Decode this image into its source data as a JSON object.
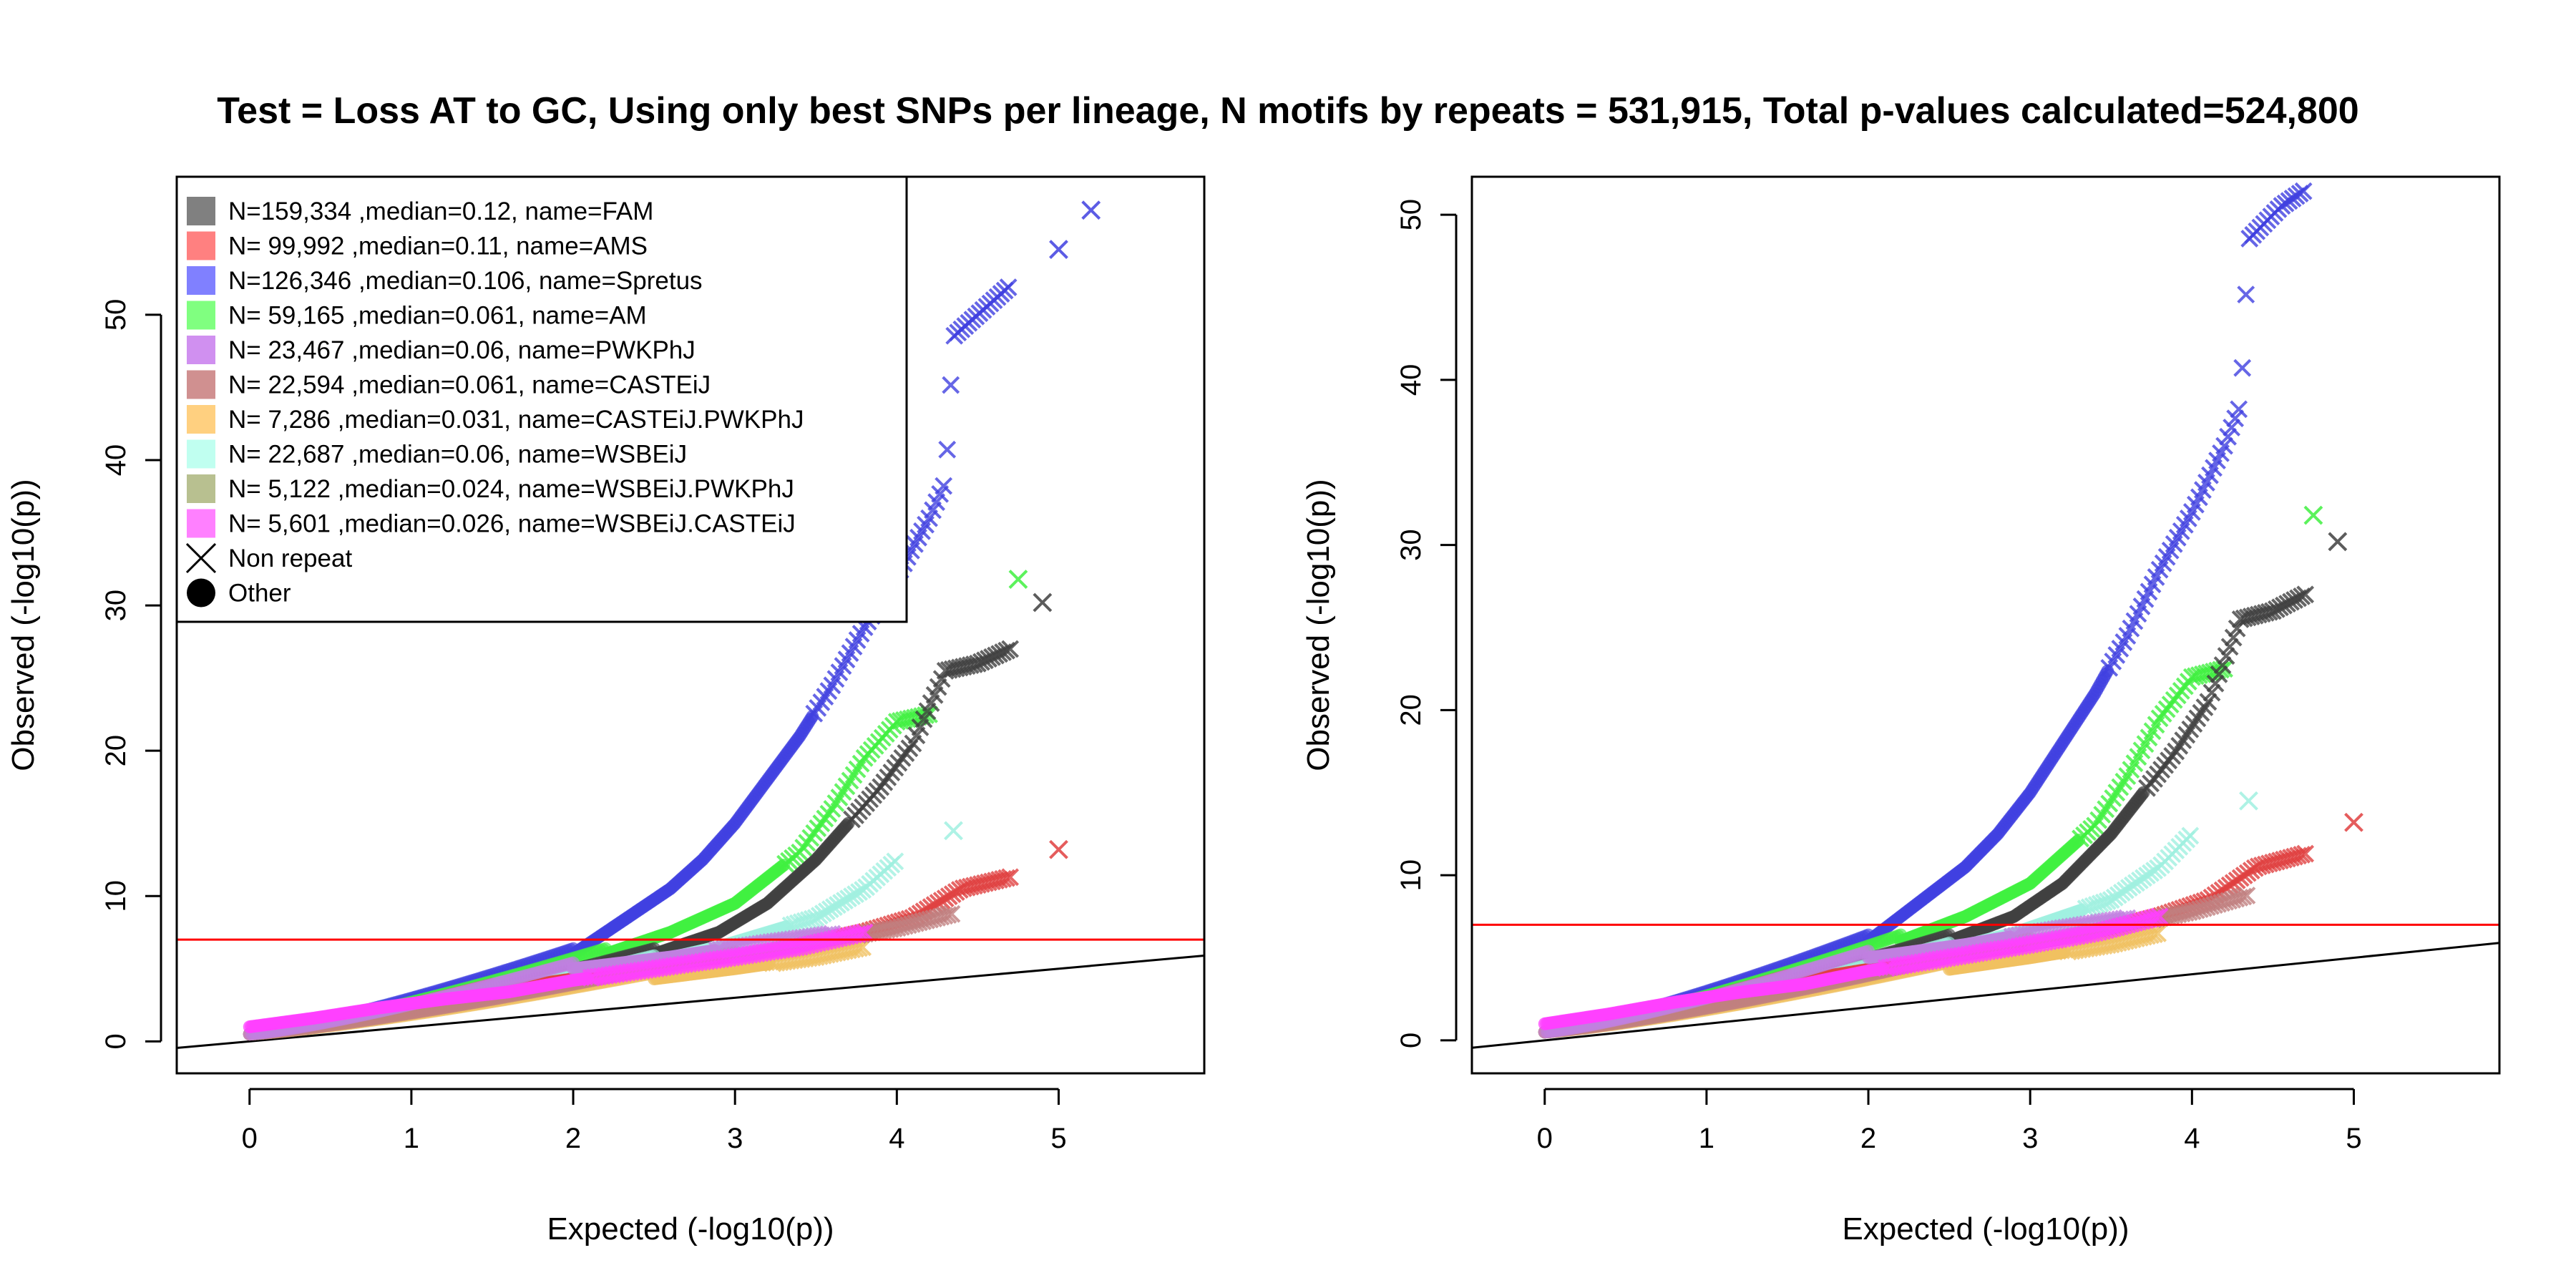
{
  "title": "Test = Loss AT to GC, Using only best SNPs per lineage, N motifs by repeats = 531,915, Total p-values calculated=524,800",
  "chart_data": [
    {
      "type": "scatter",
      "xlabel": "Expected (-log10(p))",
      "ylabel": "Observed (-log10(p))",
      "xlim": [
        -0.45,
        5.9
      ],
      "ylim": [
        -2.2,
        59.5
      ],
      "xticks": [
        "0",
        "1",
        "2",
        "3",
        "4",
        "5"
      ],
      "yticks": [
        "0",
        "10",
        "20",
        "30",
        "40",
        "50"
      ],
      "xtick_values": [
        0,
        1,
        2,
        3,
        4,
        5
      ],
      "ytick_values": [
        0,
        10,
        20,
        30,
        40,
        50
      ],
      "threshold_line": 7.0,
      "reference_line": "y = x",
      "legend": {
        "placement": "top-left",
        "entries": [
          {
            "label": "N=159,334 ,median=0.12, name=FAM",
            "color": "#808080"
          },
          {
            "label": "N= 99,992 ,median=0.11, name=AMS",
            "color": "#FF8080"
          },
          {
            "label": "N=126,346 ,median=0.106, name=Spretus",
            "color": "#8080FF"
          },
          {
            "label": "N= 59,165 ,median=0.061, name=AM",
            "color": "#80FF80"
          },
          {
            "label": "N= 23,467 ,median=0.06, name=PWKPhJ",
            "color": "#D090F0"
          },
          {
            "label": "N= 22,594 ,median=0.061, name=CASTEiJ",
            "color": "#D09090"
          },
          {
            "label": "N=  7,286 ,median=0.031, name=CASTEiJ.PWKPhJ",
            "color": "#FFD080"
          },
          {
            "label": "N= 22,687 ,median=0.06, name=WSBEiJ",
            "color": "#C0FFF0"
          },
          {
            "label": "N=  5,122 ,median=0.024, name=WSBEiJ.PWKPhJ",
            "color": "#B8C090"
          },
          {
            "label": "N=  5,601 ,median=0.026, name=WSBEiJ.CASTEiJ",
            "color": "#FF80FF"
          }
        ],
        "symbols": [
          {
            "label": "Non repeat",
            "shape": "cross"
          },
          {
            "label": "Other",
            "shape": "circle"
          }
        ]
      },
      "series": [
        {
          "name": "Spretus",
          "color": "#4040E0",
          "x": [
            2.0,
            2.2,
            2.4,
            2.6,
            2.8,
            3.0,
            3.2,
            3.4,
            3.6,
            3.8,
            4.0,
            4.2,
            4.3,
            4.35,
            4.45,
            4.55,
            4.7
          ],
          "y": [
            6.0,
            7.5,
            9.0,
            10.5,
            12.5,
            15.0,
            18.0,
            21.0,
            24.5,
            28.5,
            32.0,
            36.0,
            38.5,
            48.5,
            49.5,
            50.5,
            52.0
          ],
          "extra_x": [
            5.0,
            5.2
          ],
          "extra_y": [
            54.5,
            57.2
          ]
        },
        {
          "name": "AM",
          "color": "#40F040",
          "x": [
            2.2,
            2.6,
            3.0,
            3.4,
            3.6,
            3.8,
            4.0,
            4.2
          ],
          "y": [
            6.0,
            7.5,
            9.5,
            13.0,
            16.0,
            19.5,
            22.0,
            22.5
          ],
          "extra_x": [
            4.75
          ],
          "extra_y": [
            31.8
          ]
        },
        {
          "name": "FAM",
          "color": "#404040",
          "x": [
            2.5,
            2.9,
            3.2,
            3.5,
            3.7,
            3.9,
            4.1,
            4.3,
            4.5,
            4.7
          ],
          "y": [
            6.0,
            7.5,
            9.5,
            12.5,
            15.0,
            17.5,
            20.5,
            25.5,
            26.0,
            27.0
          ],
          "extra_x": [
            4.9
          ],
          "extra_y": [
            30.2
          ]
        },
        {
          "name": "WSBEiJ",
          "color": "#A0F0E0",
          "x": [
            2.5,
            2.9,
            3.2,
            3.5,
            3.8,
            4.0
          ],
          "y": [
            5.5,
            6.5,
            7.5,
            8.5,
            10.5,
            12.5
          ],
          "extra_x": [
            4.35
          ],
          "extra_y": [
            14.5
          ]
        },
        {
          "name": "AMS",
          "color": "#E04040",
          "x": [
            1.5,
            2.0,
            2.5,
            3.0,
            3.4,
            3.8,
            4.1,
            4.4,
            4.7
          ],
          "y": [
            3.5,
            4.3,
            5.0,
            5.8,
            6.5,
            7.5,
            8.5,
            10.5,
            11.3
          ],
          "extra_x": [
            5.0
          ],
          "extra_y": [
            13.2
          ]
        },
        {
          "name": "CASTEiJ.PWKPhJ",
          "color": "#F0C060",
          "x": [
            2.5,
            3.0,
            3.5,
            3.8
          ],
          "y": [
            4.3,
            5.0,
            5.8,
            6.5
          ]
        },
        {
          "name": "CASTEiJ",
          "color": "#C08080",
          "x": [
            3.0,
            3.5,
            4.0,
            4.35
          ],
          "y": [
            5.8,
            6.8,
            7.8,
            8.8
          ]
        },
        {
          "name": "PWKPhJ",
          "color": "#C080E0",
          "x": [
            2.0,
            2.6,
            3.2,
            3.6
          ],
          "y": [
            5.0,
            5.8,
            6.8,
            7.4
          ]
        },
        {
          "name": "WSBEiJ.CASTEiJ",
          "color": "#FF40FF",
          "x": [
            0.0,
            0.4,
            0.8,
            1.2,
            1.6,
            2.0,
            2.5,
            3.0,
            3.4,
            3.8
          ],
          "y": [
            1.0,
            1.6,
            2.3,
            2.9,
            3.4,
            4.2,
            5.0,
            5.8,
            6.5,
            7.5
          ]
        }
      ]
    },
    {
      "type": "scatter",
      "xlabel": "Expected (-log10(p))",
      "ylabel": "Observed (-log10(p))",
      "xlim": [
        -0.45,
        5.9
      ],
      "ylim": [
        -2.0,
        52.3
      ],
      "xticks": [
        "0",
        "1",
        "2",
        "3",
        "4",
        "5"
      ],
      "yticks": [
        "0",
        "10",
        "20",
        "30",
        "40",
        "50"
      ],
      "xtick_values": [
        0,
        1,
        2,
        3,
        4,
        5
      ],
      "ytick_values": [
        0,
        10,
        20,
        30,
        40,
        50
      ],
      "threshold_line": 7.0,
      "reference_line": "y = x",
      "series": [
        {
          "name": "Spretus",
          "color": "#4040E0",
          "x": [
            2.0,
            2.2,
            2.4,
            2.6,
            2.8,
            3.0,
            3.2,
            3.4,
            3.6,
            3.8,
            4.0,
            4.2,
            4.3,
            4.35,
            4.45,
            4.55,
            4.7
          ],
          "y": [
            6.0,
            7.5,
            9.0,
            10.5,
            12.5,
            15.0,
            18.0,
            21.0,
            24.5,
            28.5,
            32.0,
            36.0,
            38.5,
            48.5,
            49.5,
            50.5,
            51.5
          ]
        },
        {
          "name": "AM",
          "color": "#40F040",
          "x": [
            2.2,
            2.6,
            3.0,
            3.4,
            3.6,
            3.8,
            4.0,
            4.2
          ],
          "y": [
            6.0,
            7.5,
            9.5,
            13.0,
            16.0,
            19.5,
            22.0,
            22.5
          ],
          "extra_x": [
            4.75
          ],
          "extra_y": [
            31.8
          ]
        },
        {
          "name": "FAM",
          "color": "#404040",
          "x": [
            2.5,
            2.9,
            3.2,
            3.5,
            3.7,
            3.9,
            4.1,
            4.3,
            4.5,
            4.7
          ],
          "y": [
            6.0,
            7.5,
            9.5,
            12.5,
            15.0,
            17.5,
            20.5,
            25.5,
            26.0,
            27.0
          ],
          "extra_x": [
            4.9
          ],
          "extra_y": [
            30.2
          ]
        },
        {
          "name": "WSBEiJ",
          "color": "#A0F0E0",
          "x": [
            2.5,
            2.9,
            3.2,
            3.5,
            3.8,
            4.0
          ],
          "y": [
            5.5,
            6.5,
            7.5,
            8.5,
            10.5,
            12.5
          ],
          "extra_x": [
            4.35
          ],
          "extra_y": [
            14.5
          ]
        },
        {
          "name": "AMS",
          "color": "#E04040",
          "x": [
            1.5,
            2.0,
            2.5,
            3.0,
            3.4,
            3.8,
            4.1,
            4.4,
            4.7
          ],
          "y": [
            3.5,
            4.3,
            5.0,
            5.8,
            6.5,
            7.5,
            8.5,
            10.5,
            11.3
          ],
          "extra_x": [
            5.0
          ],
          "extra_y": [
            13.2
          ]
        },
        {
          "name": "CASTEiJ.PWKPhJ",
          "color": "#F0C060",
          "x": [
            2.5,
            3.0,
            3.5,
            3.8
          ],
          "y": [
            4.3,
            5.0,
            5.8,
            6.5
          ]
        },
        {
          "name": "CASTEiJ",
          "color": "#C08080",
          "x": [
            3.0,
            3.5,
            4.0,
            4.35
          ],
          "y": [
            5.8,
            6.8,
            7.8,
            8.8
          ]
        },
        {
          "name": "PWKPhJ",
          "color": "#C080E0",
          "x": [
            2.0,
            2.6,
            3.2,
            3.6
          ],
          "y": [
            5.0,
            5.8,
            6.8,
            7.4
          ]
        },
        {
          "name": "WSBEiJ.CASTEiJ",
          "color": "#FF40FF",
          "x": [
            0.0,
            0.4,
            0.8,
            1.2,
            1.6,
            2.0,
            2.5,
            3.0,
            3.4,
            3.8
          ],
          "y": [
            1.0,
            1.6,
            2.3,
            2.9,
            3.4,
            4.2,
            5.0,
            5.8,
            6.5,
            7.5
          ]
        }
      ]
    }
  ]
}
